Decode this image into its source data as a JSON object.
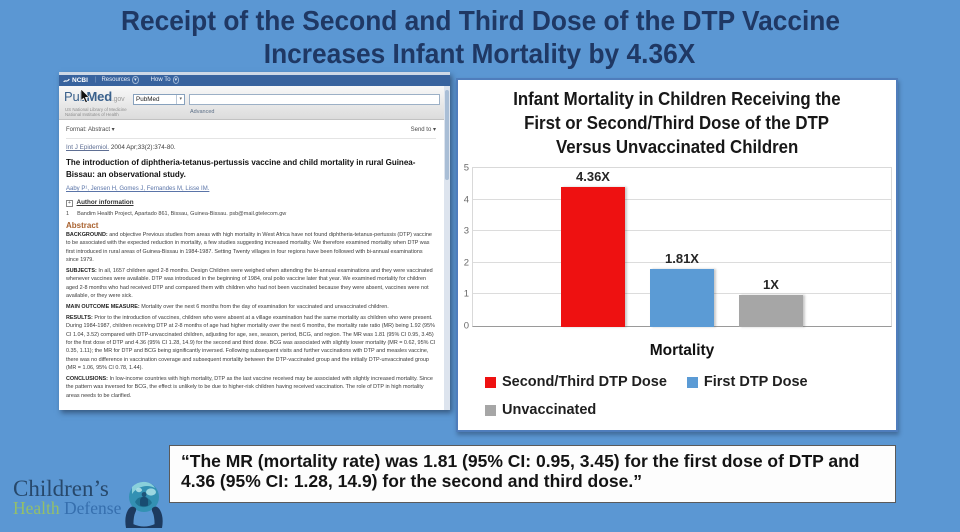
{
  "slide": {
    "title_line1": "Receipt of the Second and Third Dose of the DTP Vaccine",
    "title_line2": "Increases Infant Mortality by 4.36X",
    "background_color": "#5b97d3",
    "title_color": "#1f3864"
  },
  "pubmed": {
    "ncbi_bar": {
      "logo": "NCBI",
      "resources": "Resources",
      "how_to": "How To"
    },
    "header": {
      "logo_pub": "Pub",
      "logo_med": "Med",
      "logo_gov": ".gov",
      "nlm_line1": "US National Library of Medicine",
      "nlm_line2": "National Institutes of Health",
      "search_scope": "PubMed",
      "search_value": "",
      "advanced_label": "Advanced"
    },
    "format_bar": {
      "format_label": "Format: Abstract ▾",
      "send_to": "Send to ▾"
    },
    "citation": {
      "journal": "Int J Epidemiol.",
      "rest": "2004 Apr;33(2):374-80."
    },
    "article_title": "The introduction of diphtheria-tetanus-pertussis vaccine and child mortality in rural Guinea-Bissau: an observational study.",
    "authors": "Aaby P¹, Jensen H, Gomes J, Fernandes M, Lisse IM.",
    "author_info_label": "Author information",
    "affiliation_marker": "1",
    "affiliation_text": "Bandim Health Project, Apartado 861, Bissau, Guinea-Bissau. psb@mail.gtelecom.gw",
    "abstract_heading": "Abstract",
    "abstract": [
      {
        "label": "BACKGROUND:",
        "text": "and objective Previous studies from areas with high mortality in West Africa have not found diphtheria-tetanus-pertussis (DTP) vaccine to be associated with the expected reduction in mortality, a few studies suggesting increased mortality. We therefore examined mortality when DTP was first introduced in rural areas of Guinea-Bissau in 1984-1987. Setting Twenty villages in four regions have been followed with bi-annual examinations since 1979."
      },
      {
        "label": "SUBJECTS:",
        "text": "In all, 1657 children aged 2-8 months. Design Children were weighed when attending the bi-annual examinations and they were vaccinated whenever vaccines were available. DTP was introduced in the beginning of 1984, oral polio vaccine later that year. We examined mortality for children aged 2-8 months who had received DTP and compared them with children who had not been vaccinated because they were absent, vaccines were not available, or they were sick."
      },
      {
        "label": "MAIN OUTCOME MEASURE:",
        "text": "Mortality over the next 6 months from the day of examination for vaccinated and unvaccinated children."
      },
      {
        "label": "RESULTS:",
        "text": "Prior to the introduction of vaccines, children who were absent at a village examination had the same mortality as children who were present. During 1984-1987, children receiving DTP at 2-8 months of age had higher mortality over the next 6 months, the mortality rate ratio (MR) being 1.92 (95% CI 1.04, 3.52) compared with DTP-unvaccinated children, adjusting for age, sex, season, period, BCG, and region. The MR was 1.81 (95% CI 0.95, 3.45) for the first dose of DTP and 4.36 (95% CI 1.28, 14.9) for the second and third dose. BCG was associated with slightly lower mortality (MR = 0.62, 95% CI 0.35, 1.11); the MR for DTP and BCG being significantly inversed. Following subsequent visits and further vaccinations with DTP and measles vaccine, there was no difference in vaccination coverage and subsequent mortality between the DTP-vaccinated group and the initially DTP-unvaccinated group (MR = 1.06, 95% CI 0.78, 1.44)."
      },
      {
        "label": "CONCLUSIONS:",
        "text": "In low-income countries with high mortality, DTP as the last vaccine received may be associated with slightly increased mortality. Since the pattern was inversed for BCG, the effect is unlikely to be due to higher-risk children having received vaccination. The role of DTP in high mortality areas needs to be clarified."
      }
    ]
  },
  "chart_data": {
    "type": "bar",
    "title": "Infant Mortality in Children Receiving the First or Second/Third Dose of the DTP Versus Unvaccinated Children",
    "title_lines": [
      "Infant Mortality in Children Receiving the",
      "First or Second/Third Dose of the DTP",
      "Versus Unvaccinated Children"
    ],
    "categories": [
      "Second/Third DTP Dose",
      "First DTP Dose",
      "Unvaccinated"
    ],
    "values": [
      4.36,
      1.81,
      1
    ],
    "bar_labels": [
      "4.36X",
      "1.81X",
      "1X"
    ],
    "colors": [
      "#ee1111",
      "#5b9bd5",
      "#a6a6a6"
    ],
    "xlabel": "Mortality",
    "ylabel": "",
    "ylim": [
      0,
      5
    ],
    "yticks": [
      0,
      1,
      2,
      3,
      4,
      5
    ],
    "grid": true,
    "legend_position": "bottom-left"
  },
  "quote": {
    "line1": "“The MR (mortality rate) was 1.81 (95% CI: 0.95, 3.45) for the first dose of DTP and",
    "line2": "4.36 (95% CI: 1.28, 14.9) for the second and third dose.”"
  },
  "logo": {
    "line1": "Children’s",
    "word_health": "Health",
    "word_defense": "Defense",
    "colors": {
      "childrens": "#27486b",
      "health": "#93bf6a",
      "defense": "#366fae"
    }
  }
}
